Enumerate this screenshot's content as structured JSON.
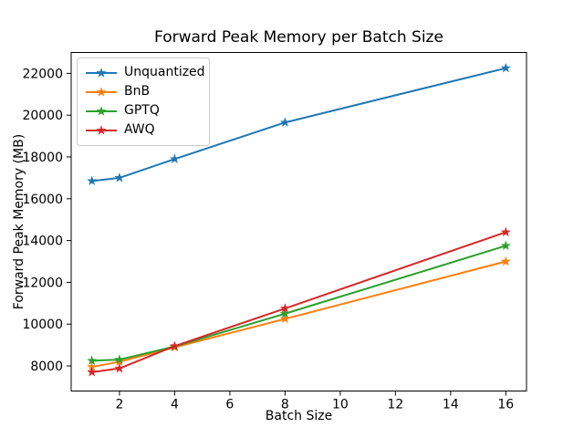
{
  "figure": {
    "background": "#ffffff",
    "text_color": "#000000",
    "spine_color": "#000000",
    "legend_border_color": "#cccccc"
  },
  "chart_data": {
    "type": "line",
    "title": "Forward Peak Memory per Batch Size",
    "xlabel": "Batch Size",
    "ylabel": "Forward Peak Memory (MB)",
    "x": [
      1,
      2,
      4,
      8,
      16
    ],
    "series": [
      {
        "name": "Unquantized",
        "color": "#1f77b4",
        "marker": "star",
        "values": [
          16850,
          17000,
          17900,
          19650,
          22250
        ]
      },
      {
        "name": "BnB",
        "color": "#ff7f0e",
        "marker": "star",
        "values": [
          7950,
          8200,
          8890,
          10250,
          13000
        ]
      },
      {
        "name": "GPTQ",
        "color": "#2ca02c",
        "marker": "star",
        "values": [
          8250,
          8300,
          8930,
          10500,
          13750
        ]
      },
      {
        "name": "AWQ",
        "color": "#d62728",
        "marker": "star",
        "values": [
          7700,
          7880,
          8950,
          10750,
          14400
        ]
      }
    ],
    "xticks": [
      2,
      4,
      6,
      8,
      10,
      12,
      14,
      16
    ],
    "yticks": [
      8000,
      10000,
      12000,
      14000,
      16000,
      18000,
      20000,
      22000
    ],
    "xlim": [
      0.25,
      16.75
    ],
    "ylim": [
      6800,
      23000
    ],
    "grid": false,
    "legend_position": "upper-left"
  }
}
